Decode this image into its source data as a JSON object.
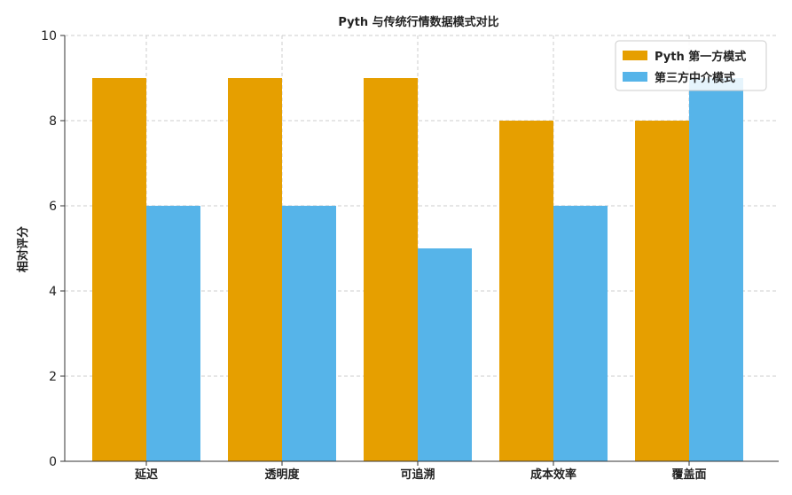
{
  "chart_data": {
    "type": "bar",
    "title": "Pyth 与传统行情数据模式对比",
    "xlabel": "",
    "ylabel": "相对评分",
    "ylim": [
      0,
      10
    ],
    "yticks": [
      0,
      2,
      4,
      6,
      8,
      10
    ],
    "grid": true,
    "legend_position": "top-right",
    "categories": [
      "延迟",
      "透明度",
      "可追溯",
      "成本效率",
      "覆盖面"
    ],
    "series": [
      {
        "name": "Pyth 第一方模式",
        "color": "#E69F00",
        "values": [
          9,
          9,
          9,
          8,
          8
        ]
      },
      {
        "name": "第三方中介模式",
        "color": "#56B4E9",
        "values": [
          6,
          6,
          5,
          6,
          9
        ]
      }
    ]
  }
}
